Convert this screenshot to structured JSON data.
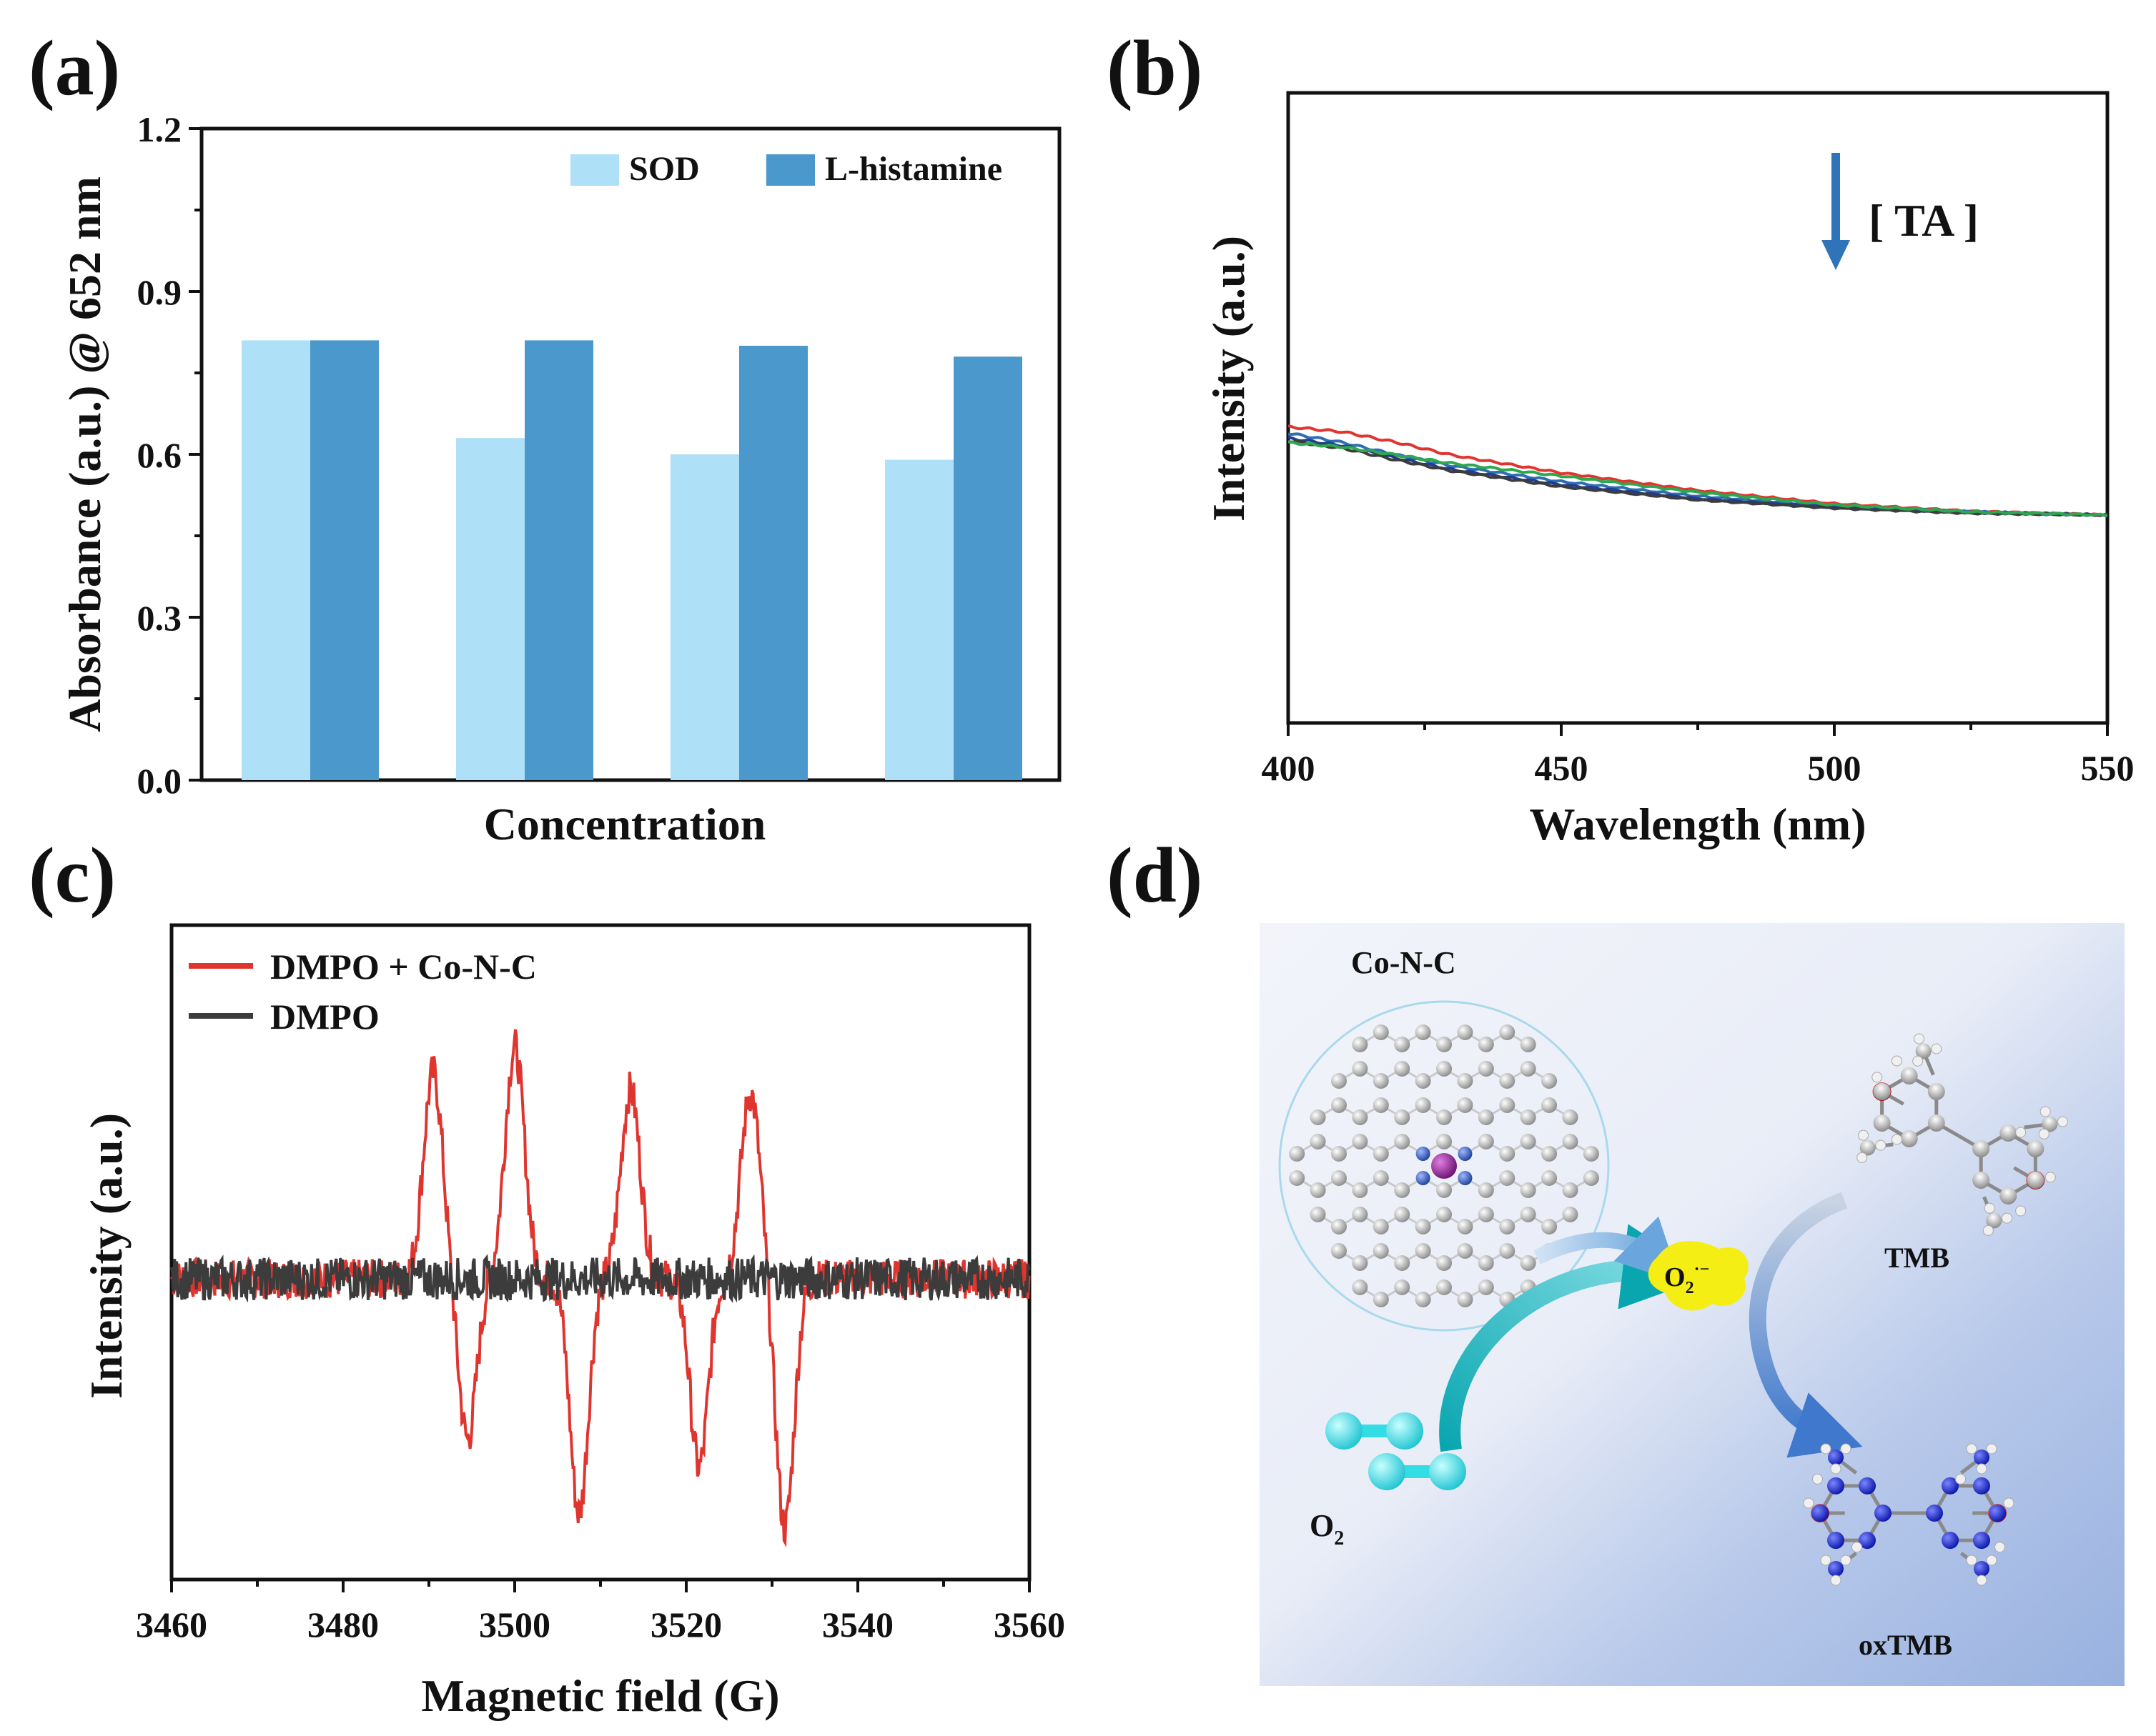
{
  "colors": {
    "sod": "#aee0f8",
    "histamine": "#4a98cc",
    "red": "#e0352f",
    "dark": "#3c3c3c",
    "blue": "#2e6eb5",
    "green": "#2ea84f",
    "navy": "#223d8f",
    "arrow": "#2f74b8",
    "yellow": "#f5ee14",
    "cyan": "#33dde6"
  },
  "chart_data": [
    {
      "panel": "(a)",
      "type": "bar",
      "title": "",
      "xlabel": "Concentration",
      "ylabel": "Absorbance (a.u.) @ 652 nm",
      "ylim": [
        0,
        1.2
      ],
      "yticks": [
        "0.0",
        "0.3",
        "0.6",
        "0.9",
        "1.2"
      ],
      "categories": [
        "",
        "",
        "",
        ""
      ],
      "series": [
        {
          "name": "SOD",
          "color": "#aee0f8",
          "values": [
            0.81,
            0.63,
            0.6,
            0.59
          ]
        },
        {
          "name": "L-histamine",
          "color": "#4a98cc",
          "values": [
            0.81,
            0.81,
            0.8,
            0.78
          ]
        }
      ],
      "legend": "top-right",
      "grid": false
    },
    {
      "panel": "(b)",
      "type": "line",
      "title": "",
      "xlabel": "Wavelength (nm)",
      "ylabel": "Intensity (a.u.)",
      "xlim": [
        400,
        550
      ],
      "ylim": [
        0,
        1
      ],
      "xticks": [
        "400",
        "450",
        "500",
        "550"
      ],
      "annotation": "[ TA ]",
      "annotation_arrow": "down",
      "series": [
        {
          "name": "red",
          "color": "#e0352f",
          "x": [
            400,
            410,
            420,
            430,
            450,
            475,
            500,
            525,
            550
          ],
          "y": [
            0.47,
            0.462,
            0.445,
            0.425,
            0.397,
            0.369,
            0.348,
            0.336,
            0.33
          ]
        },
        {
          "name": "blue",
          "color": "#2e6eb5",
          "x": [
            400,
            410,
            420,
            430,
            450,
            475,
            500,
            525,
            550
          ],
          "y": [
            0.46,
            0.445,
            0.425,
            0.408,
            0.383,
            0.36,
            0.344,
            0.335,
            0.33
          ]
        },
        {
          "name": "navy",
          "color": "#223d8f",
          "x": [
            400,
            410,
            420,
            430,
            450,
            475,
            500,
            525,
            550
          ],
          "y": [
            0.452,
            0.44,
            0.42,
            0.402,
            0.378,
            0.356,
            0.342,
            0.334,
            0.33
          ]
        },
        {
          "name": "dark",
          "color": "#3c3c3c",
          "x": [
            400,
            410,
            420,
            430,
            450,
            475,
            500,
            525,
            550
          ],
          "y": [
            0.448,
            0.436,
            0.417,
            0.4,
            0.375,
            0.354,
            0.341,
            0.333,
            0.33
          ]
        },
        {
          "name": "green",
          "color": "#2ea84f",
          "x": [
            400,
            410,
            420,
            430,
            450,
            475,
            500,
            525,
            550
          ],
          "y": [
            0.445,
            0.438,
            0.425,
            0.412,
            0.392,
            0.366,
            0.346,
            0.335,
            0.33
          ]
        }
      ],
      "legend": "none",
      "grid": false
    },
    {
      "panel": "(c)",
      "type": "line",
      "title": "",
      "xlabel": "Magnetic field (G)",
      "ylabel": "Intensity (a.u.)",
      "xlim": [
        3460,
        3560
      ],
      "ylim": [
        -1,
        1
      ],
      "xticks": [
        "3460",
        "3480",
        "3500",
        "3520",
        "3540",
        "3560"
      ],
      "series": [
        {
          "name": "DMPO + Co-N-C",
          "color": "#e0352f",
          "peaks_x": [
            3490.5,
            3500,
            3513.5,
            3527.5
          ],
          "peak_amp": [
            0.72,
            0.81,
            0.66,
            0.65
          ],
          "trough_x": [
            3494.5,
            3507.5,
            3521.5,
            3531.5
          ],
          "trough_amp": [
            -0.56,
            -0.82,
            -0.66,
            -0.87
          ],
          "noise": 0.07
        },
        {
          "name": "DMPO",
          "color": "#3c3c3c",
          "noise": 0.075
        }
      ],
      "legend": "top-left",
      "grid": false
    }
  ],
  "panels": {
    "a": "(a)",
    "b": "(b)",
    "c": "(c)",
    "d": "(d)"
  },
  "panel_a": {
    "ylabel": "Absorbance (a.u.) @ 652 nm",
    "xlabel": "Concentration",
    "legend_sod": "SOD",
    "legend_histamine": "L-histamine"
  },
  "panel_b": {
    "ylabel": "Intensity (a.u.)",
    "xlabel": "Wavelength (nm)",
    "annotation": "[ TA ]"
  },
  "panel_c": {
    "ylabel": "Intensity (a.u.)",
    "xlabel": "Magnetic field (G)",
    "legend_red": "DMPO + Co-N-C",
    "legend_dark": "DMPO"
  },
  "panel_d": {
    "catalyst": "Co-N-C",
    "o2_prefix": "O",
    "o2_sub": "2",
    "superoxide_prefix": "O",
    "superoxide_sub": "2",
    "superoxide_sup": "·−",
    "tmb": "TMB",
    "oxtmb": "oxTMB"
  }
}
